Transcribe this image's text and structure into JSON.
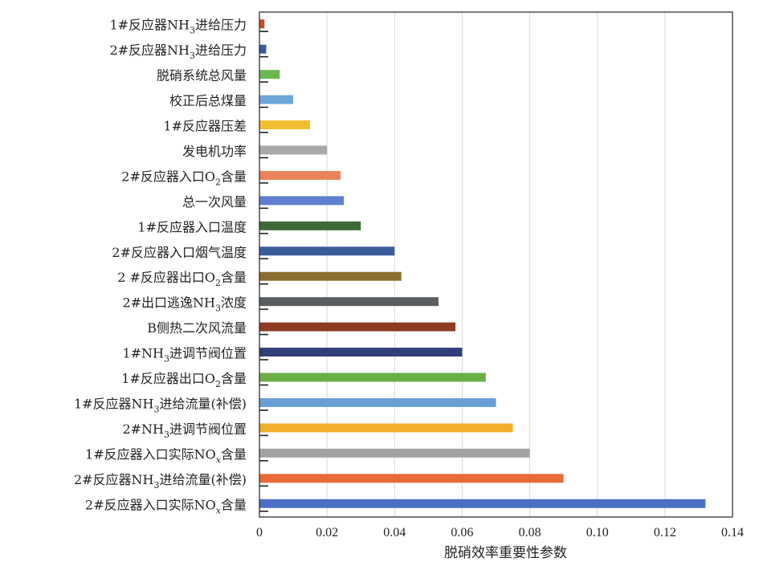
{
  "chart_data": {
    "type": "bar",
    "orientation": "horizontal",
    "xlabel": "脱硝效率重要性参数",
    "xlim": [
      0,
      0.14
    ],
    "xticks": [
      "0",
      "0.02",
      "0.04",
      "0.06",
      "0.08",
      "0.10",
      "0.12",
      "0.14"
    ],
    "grid": "vertical gridlines",
    "bars": [
      {
        "label": "1#反应器NH3进给压力",
        "value": 0.0015,
        "color": "#c4502b"
      },
      {
        "label": "2#反应器NH3进给压力",
        "value": 0.002,
        "color": "#3a5aa0"
      },
      {
        "label": "脱硝系统总风量",
        "value": 0.006,
        "color": "#6ab851"
      },
      {
        "label": "校正后总煤量",
        "value": 0.01,
        "color": "#6fa6d8"
      },
      {
        "label": "1#反应器压差",
        "value": 0.015,
        "color": "#f2bd33"
      },
      {
        "label": "发电机功率",
        "value": 0.02,
        "color": "#a9a9a9"
      },
      {
        "label": "2#反应器入口O2含量",
        "value": 0.024,
        "color": "#e8845a"
      },
      {
        "label": "总一次风量",
        "value": 0.025,
        "color": "#5e7fd0"
      },
      {
        "label": "1#反应器入口温度",
        "value": 0.03,
        "color": "#3d6b35"
      },
      {
        "label": "2#反应器入口烟气温度",
        "value": 0.04,
        "color": "#3a5d99"
      },
      {
        "label": "2 #反应器出口O2含量",
        "value": 0.042,
        "color": "#8a6d2e"
      },
      {
        "label": "2#出口逃逸NH3浓度",
        "value": 0.053,
        "color": "#5a5d61"
      },
      {
        "label": "B侧热二次风流量",
        "value": 0.058,
        "color": "#8e3b22"
      },
      {
        "label": "1#NH3进调节阀位置",
        "value": 0.06,
        "color": "#2f3f78"
      },
      {
        "label": "1#反应器出口O2含量",
        "value": 0.067,
        "color": "#6aae46"
      },
      {
        "label": "1#反应器NH3进给流量(补偿)",
        "value": 0.07,
        "color": "#6a9fd4"
      },
      {
        "label": "2#NH3进调节阀位置",
        "value": 0.075,
        "color": "#f0ae2a"
      },
      {
        "label": "1#反应器入口实际NOx含量",
        "value": 0.08,
        "color": "#a3a3a3"
      },
      {
        "label": "2#反应器NH3进给流量(补偿)",
        "value": 0.09,
        "color": "#ea6b35"
      },
      {
        "label": "2#反应器入口实际NOx含量",
        "value": 0.132,
        "color": "#4a70c4"
      }
    ],
    "label_parts": [
      [
        {
          "t": "1#反应器NH"
        },
        {
          "t": "3",
          "sub": true
        },
        {
          "t": "进给压力"
        }
      ],
      [
        {
          "t": "2#反应器NH"
        },
        {
          "t": "3",
          "sub": true
        },
        {
          "t": "进给压力"
        }
      ],
      [
        {
          "t": "脱硝系统总风量"
        }
      ],
      [
        {
          "t": "校正后总煤量"
        }
      ],
      [
        {
          "t": "1#反应器压差"
        }
      ],
      [
        {
          "t": "发电机功率"
        }
      ],
      [
        {
          "t": "2#反应器入口O"
        },
        {
          "t": "2",
          "sub": true
        },
        {
          "t": "含量"
        }
      ],
      [
        {
          "t": "总一次风量"
        }
      ],
      [
        {
          "t": "1#反应器入口温度"
        }
      ],
      [
        {
          "t": "2#反应器入口烟气温度"
        }
      ],
      [
        {
          "t": "2 #反应器出口O"
        },
        {
          "t": "2",
          "sub": true
        },
        {
          "t": "含量"
        }
      ],
      [
        {
          "t": "2#出口逃逸NH"
        },
        {
          "t": "3",
          "sub": true
        },
        {
          "t": "浓度"
        }
      ],
      [
        {
          "t": "B侧热二次风流量"
        }
      ],
      [
        {
          "t": "1#NH"
        },
        {
          "t": "3",
          "sub": true
        },
        {
          "t": "进调节阀位置"
        }
      ],
      [
        {
          "t": "1#反应器出口O"
        },
        {
          "t": "2",
          "sub": true
        },
        {
          "t": "含量"
        }
      ],
      [
        {
          "t": "1#反应器NH"
        },
        {
          "t": "3",
          "sub": true
        },
        {
          "t": "进给流量(补偿)"
        }
      ],
      [
        {
          "t": "2#NH"
        },
        {
          "t": "3",
          "sub": true
        },
        {
          "t": "进调节阀位置"
        }
      ],
      [
        {
          "t": "1#反应器入口实际NO"
        },
        {
          "t": "x",
          "sub": true,
          "italic": true
        },
        {
          "t": "含量"
        }
      ],
      [
        {
          "t": "2#反应器NH"
        },
        {
          "t": "3",
          "sub": true
        },
        {
          "t": "进给流量(补偿)"
        }
      ],
      [
        {
          "t": "2#反应器入口实际NO"
        },
        {
          "t": "x",
          "sub": true,
          "italic": true
        },
        {
          "t": "含量"
        }
      ]
    ]
  }
}
